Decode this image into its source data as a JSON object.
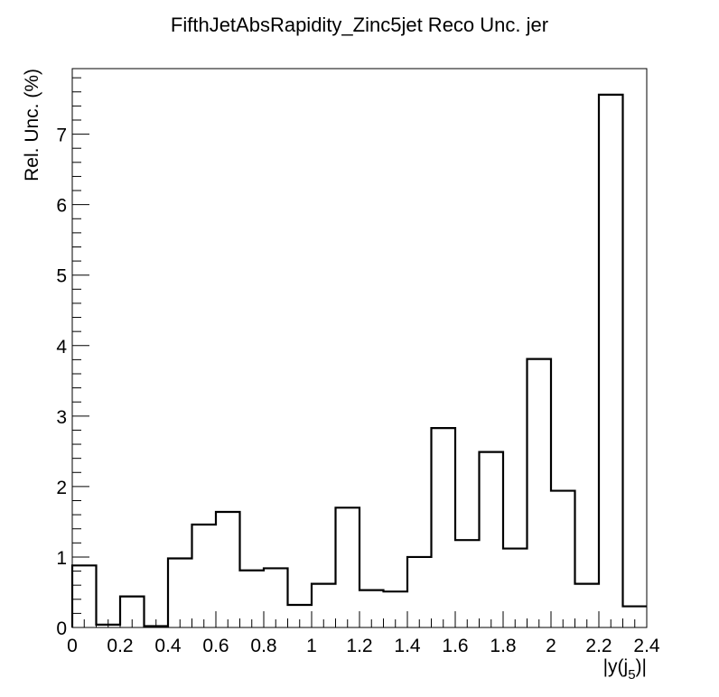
{
  "chart_data": {
    "type": "bar",
    "style": "step-histogram",
    "title": "FifthJetAbsRapidity_Zinc5jet Reco Unc. jer",
    "xlabel": "|y(j5)|",
    "xlabel_main": "|y(j",
    "xlabel_sub": "5",
    "xlabel_close": ")|",
    "ylabel": "Rel. Unc. (%)",
    "xlim": [
      0,
      2.4
    ],
    "ylim": [
      0,
      7.93
    ],
    "bin_edges": [
      0,
      0.1,
      0.2,
      0.3,
      0.4,
      0.5,
      0.6,
      0.7,
      0.8,
      0.9,
      1.0,
      1.1,
      1.2,
      1.3,
      1.4,
      1.5,
      1.6,
      1.7,
      1.8,
      1.9,
      2.0,
      2.1,
      2.2,
      2.3,
      2.4
    ],
    "values": [
      0.88,
      0.04,
      0.44,
      0.02,
      0.98,
      1.46,
      1.64,
      0.81,
      0.84,
      0.32,
      0.62,
      1.7,
      0.53,
      0.51,
      1.0,
      2.83,
      1.24,
      2.49,
      1.12,
      3.81,
      1.94,
      0.62,
      7.56,
      0.3
    ],
    "x_ticks": [
      "0",
      "0.2",
      "0.4",
      "0.6",
      "0.8",
      "1",
      "1.2",
      "1.4",
      "1.6",
      "1.8",
      "2",
      "2.2",
      "2.4"
    ],
    "y_ticks": [
      "0",
      "1",
      "2",
      "3",
      "4",
      "5",
      "6",
      "7"
    ],
    "grid": false,
    "line_color": "#000000"
  }
}
